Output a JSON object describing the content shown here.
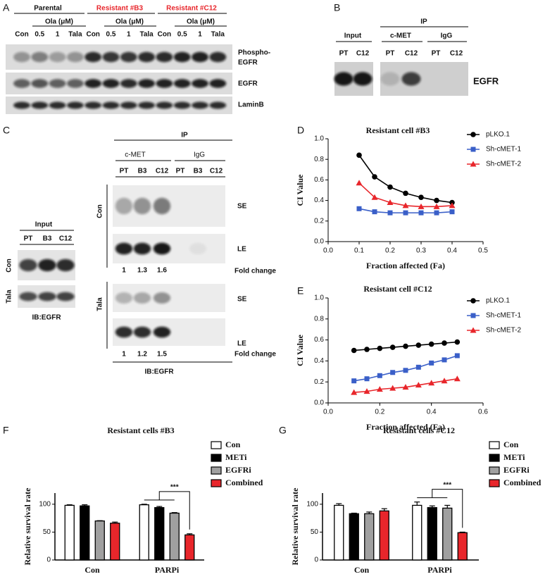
{
  "panel_labels": {
    "a": "A",
    "b": "B",
    "c": "C",
    "d": "D",
    "e": "E",
    "f": "F",
    "g": "G"
  },
  "blot_a": {
    "groups": [
      "Parental",
      "Resistant #B3",
      "Resistant #C12"
    ],
    "dose_label": "Ola (μM)",
    "lanes": [
      "Con",
      "0.5",
      "1",
      "Tala",
      "Con",
      "0.5",
      "1",
      "Tala",
      "Con",
      "0.5",
      "1",
      "Tala"
    ],
    "rows": [
      [
        "Phospho-",
        "EGFR"
      ],
      [
        "EGFR"
      ],
      [
        "LaminB"
      ]
    ]
  },
  "blot_b": {
    "header": "IP",
    "columns": [
      "Input",
      "c-MET",
      "IgG"
    ],
    "lanes": [
      "PT",
      "C12",
      "PT",
      "C12",
      "PT",
      "C12"
    ],
    "row": "EGFR"
  },
  "blot_c": {
    "ip": {
      "header": "IP",
      "columns": [
        "c-MET",
        "IgG"
      ],
      "lanes": [
        "PT",
        "B3",
        "C12",
        "PT",
        "B3",
        "C12"
      ],
      "treatments": [
        "Con",
        "Tala"
      ],
      "exposures": [
        "SE",
        "LE"
      ],
      "fold_label": "Fold change",
      "fold_values": [
        [
          1,
          1.3,
          1.6
        ],
        [
          1,
          1.2,
          1.5
        ]
      ],
      "footer": "IB:EGFR"
    },
    "input": {
      "header": "Input",
      "lanes": [
        "PT",
        "B3",
        "C12"
      ],
      "treatments": [
        "Con",
        "Tala"
      ],
      "footer": "IB:EGFR"
    }
  },
  "chart_data": [
    {
      "type": "line",
      "title": "Resistant cell #B3",
      "x_label": "Fraction affected (Fa)",
      "y_label": "CI Value",
      "x": [
        0.1,
        0.15,
        0.2,
        0.25,
        0.3,
        0.35,
        0.4
      ],
      "series": [
        {
          "name": "pLKO.1",
          "color": "#000000",
          "marker": "circle",
          "values": [
            0.84,
            0.63,
            0.53,
            0.47,
            0.43,
            0.4,
            0.38
          ]
        },
        {
          "name": "Sh-cMET-1",
          "color": "#3a5fc8",
          "marker": "square",
          "values": [
            0.32,
            0.29,
            0.28,
            0.28,
            0.28,
            0.28,
            0.29
          ]
        },
        {
          "name": "Sh-cMET-2",
          "color": "#e8262b",
          "marker": "triangle",
          "values": [
            0.57,
            0.43,
            0.38,
            0.35,
            0.34,
            0.34,
            0.35
          ]
        }
      ],
      "xlim": [
        0,
        0.5
      ],
      "xticks": [
        {
          "value": 0,
          "label": "0.0"
        },
        0.1,
        0.2,
        0.3,
        0.4,
        0.5
      ],
      "ylim": [
        0,
        1
      ],
      "yticks": [
        {
          "value": 0,
          "label": "0.0"
        },
        0.2,
        0.4,
        0.6,
        0.8,
        {
          "value": 1,
          "label": "1.0"
        }
      ]
    },
    {
      "type": "line",
      "title": "Resistant cell #C12",
      "x_label": "Fraction affected (Fa)",
      "y_label": "CI Value",
      "x": [
        0.1,
        0.15,
        0.2,
        0.25,
        0.3,
        0.35,
        0.4,
        0.45,
        0.5
      ],
      "series": [
        {
          "name": "pLKO.1",
          "color": "#000000",
          "marker": "circle",
          "values": [
            0.5,
            0.51,
            0.52,
            0.53,
            0.54,
            0.55,
            0.56,
            0.57,
            0.58
          ]
        },
        {
          "name": "Sh-cMET-1",
          "color": "#3a5fc8",
          "marker": "square",
          "values": [
            0.21,
            0.23,
            0.26,
            0.29,
            0.31,
            0.34,
            0.38,
            0.41,
            0.45
          ]
        },
        {
          "name": "Sh-cMET-2",
          "color": "#e8262b",
          "marker": "triangle",
          "values": [
            0.1,
            0.11,
            0.13,
            0.14,
            0.15,
            0.17,
            0.19,
            0.21,
            0.23
          ]
        }
      ],
      "xlim": [
        0,
        0.6
      ],
      "xticks": [
        {
          "value": 0,
          "label": "0.0"
        },
        0.2,
        0.4,
        0.6
      ],
      "ylim": [
        0,
        1
      ],
      "yticks": [
        {
          "value": 0,
          "label": "0.0"
        },
        0.2,
        0.4,
        0.6,
        0.8,
        {
          "value": 1,
          "label": "1.0"
        }
      ]
    },
    {
      "type": "bar",
      "title": "Resistant cells #B3",
      "y_label": "Relative survival rate",
      "categories": [
        "Con",
        "PARPi"
      ],
      "series": [
        {
          "name": "Con",
          "color": "#ffffff",
          "values": [
            98,
            99
          ],
          "errors": [
            1,
            1
          ]
        },
        {
          "name": "METi",
          "color": "#000000",
          "values": [
            97,
            94
          ],
          "errors": [
            2,
            2
          ]
        },
        {
          "name": "EGFRi",
          "color": "#a0a0a0",
          "values": [
            70,
            84
          ],
          "errors": [
            0.5,
            1
          ]
        },
        {
          "name": "Combined",
          "color": "#e8262b",
          "values": [
            66,
            45
          ],
          "errors": [
            2,
            2
          ]
        }
      ],
      "annotation": "***",
      "ylim": [
        0,
        120
      ],
      "yticks": [
        0,
        50,
        100
      ]
    },
    {
      "type": "bar",
      "title": "Resistant cells #C12",
      "y_label": "Relative survival rate",
      "categories": [
        "Con",
        "PARPi"
      ],
      "series": [
        {
          "name": "Con",
          "color": "#ffffff",
          "values": [
            98,
            98
          ],
          "errors": [
            3,
            6
          ]
        },
        {
          "name": "METi",
          "color": "#000000",
          "values": [
            83,
            94
          ],
          "errors": [
            1,
            3
          ]
        },
        {
          "name": "EGFRi",
          "color": "#a0a0a0",
          "values": [
            83,
            93
          ],
          "errors": [
            3,
            5
          ]
        },
        {
          "name": "Combined",
          "color": "#e8262b",
          "values": [
            88,
            49
          ],
          "errors": [
            4,
            1
          ]
        }
      ],
      "annotation": "***",
      "ylim": [
        0,
        120
      ],
      "yticks": [
        0,
        50,
        100
      ]
    }
  ]
}
